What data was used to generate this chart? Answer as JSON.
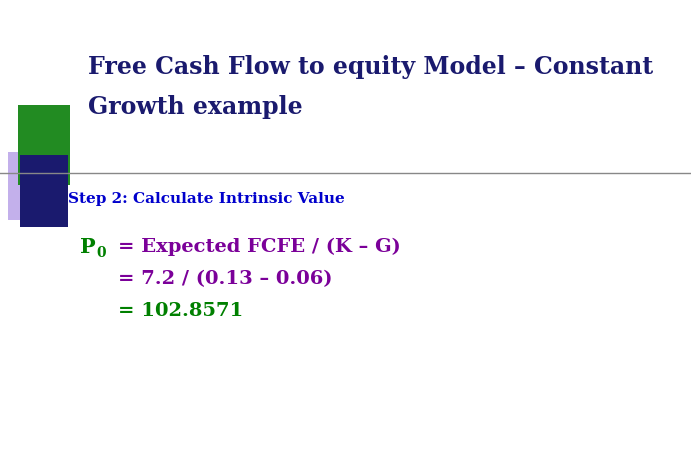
{
  "title_line1": "Free Cash Flow to equity Model – Constant",
  "title_line2": "Growth example",
  "title_color": "#1a1a6e",
  "title_fontsize": 17,
  "step_text": "Step 2: Calculate Intrinsic Value",
  "step_color": "#0000cc",
  "step_fontsize": 11,
  "p0_label": "P",
  "p0_sub": "0",
  "p0_color": "#008000",
  "p0_fontsize": 15,
  "line1": "= Expected FCFE / (K – G)",
  "line2": "= 7.2 / (0.13 – 0.06)",
  "line3": "= 102.8571",
  "formula_color": "#7b0099",
  "formula_fontsize": 14,
  "bg_color": "#ffffff",
  "decoration_green": "#228b22",
  "decoration_purple": "#9370db",
  "decoration_navy": "#1a1a6e",
  "line_color": "#888888"
}
